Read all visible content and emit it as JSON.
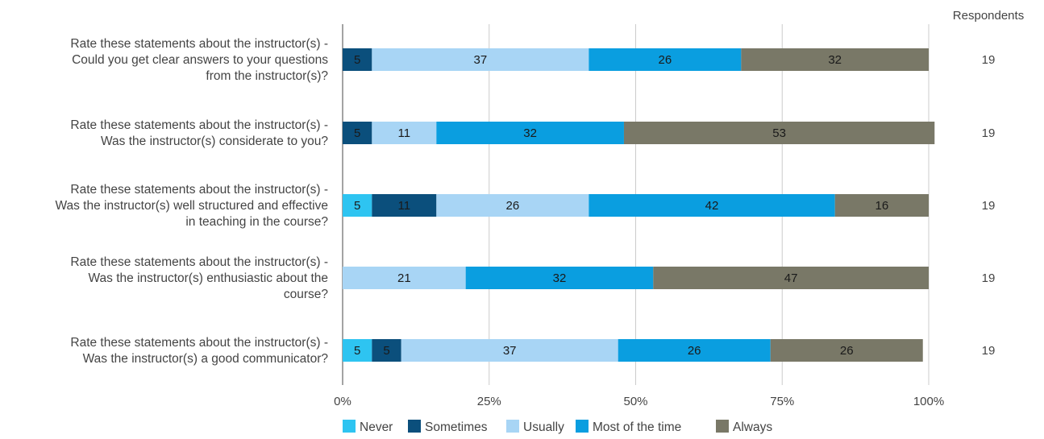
{
  "chart_data": {
    "type": "bar",
    "orientation": "horizontal",
    "stacked": true,
    "percent_scale": true,
    "categories": [
      [
        "Rate these statements about the instructor(s) -",
        "Could you get clear answers to your questions",
        "from the instructor(s)?"
      ],
      [
        "Rate these statements about the instructor(s) -",
        "Was the instructor(s) considerate to you?"
      ],
      [
        "Rate these statements about the instructor(s) -",
        "Was the instructor(s) well structured and effective",
        "in teaching in the course?"
      ],
      [
        "Rate these statements about the instructor(s) -",
        "Was the instructor(s) enthusiastic about the",
        "course?"
      ],
      [
        "Rate these statements about the instructor(s) -",
        "Was the instructor(s) a good communicator?"
      ]
    ],
    "series": [
      {
        "name": "Never",
        "color": "#2ec4f1",
        "label_color": "#1a1a1a",
        "values": [
          0,
          0,
          5,
          0,
          5
        ]
      },
      {
        "name": "Sometimes",
        "color": "#0b4f7c",
        "label_color": "#1a1a1a",
        "values": [
          5,
          5,
          11,
          0,
          5
        ]
      },
      {
        "name": "Usually",
        "color": "#a8d5f5",
        "label_color": "#1a1a1a",
        "values": [
          37,
          11,
          26,
          21,
          37
        ]
      },
      {
        "name": "Most of the time",
        "color": "#0a9ee0",
        "label_color": "#1a1a1a",
        "values": [
          26,
          32,
          42,
          32,
          26
        ]
      },
      {
        "name": "Always",
        "color": "#797867",
        "label_color": "#1a1a1a",
        "values": [
          32,
          53,
          16,
          47,
          26
        ]
      }
    ],
    "x_ticks": [
      "0%",
      "25%",
      "50%",
      "75%",
      "100%"
    ],
    "xlim": [
      0,
      100
    ],
    "grid": true,
    "legend_position": "bottom",
    "respondents_header": "Respondents",
    "respondents": [
      19,
      19,
      19,
      19,
      19
    ]
  }
}
